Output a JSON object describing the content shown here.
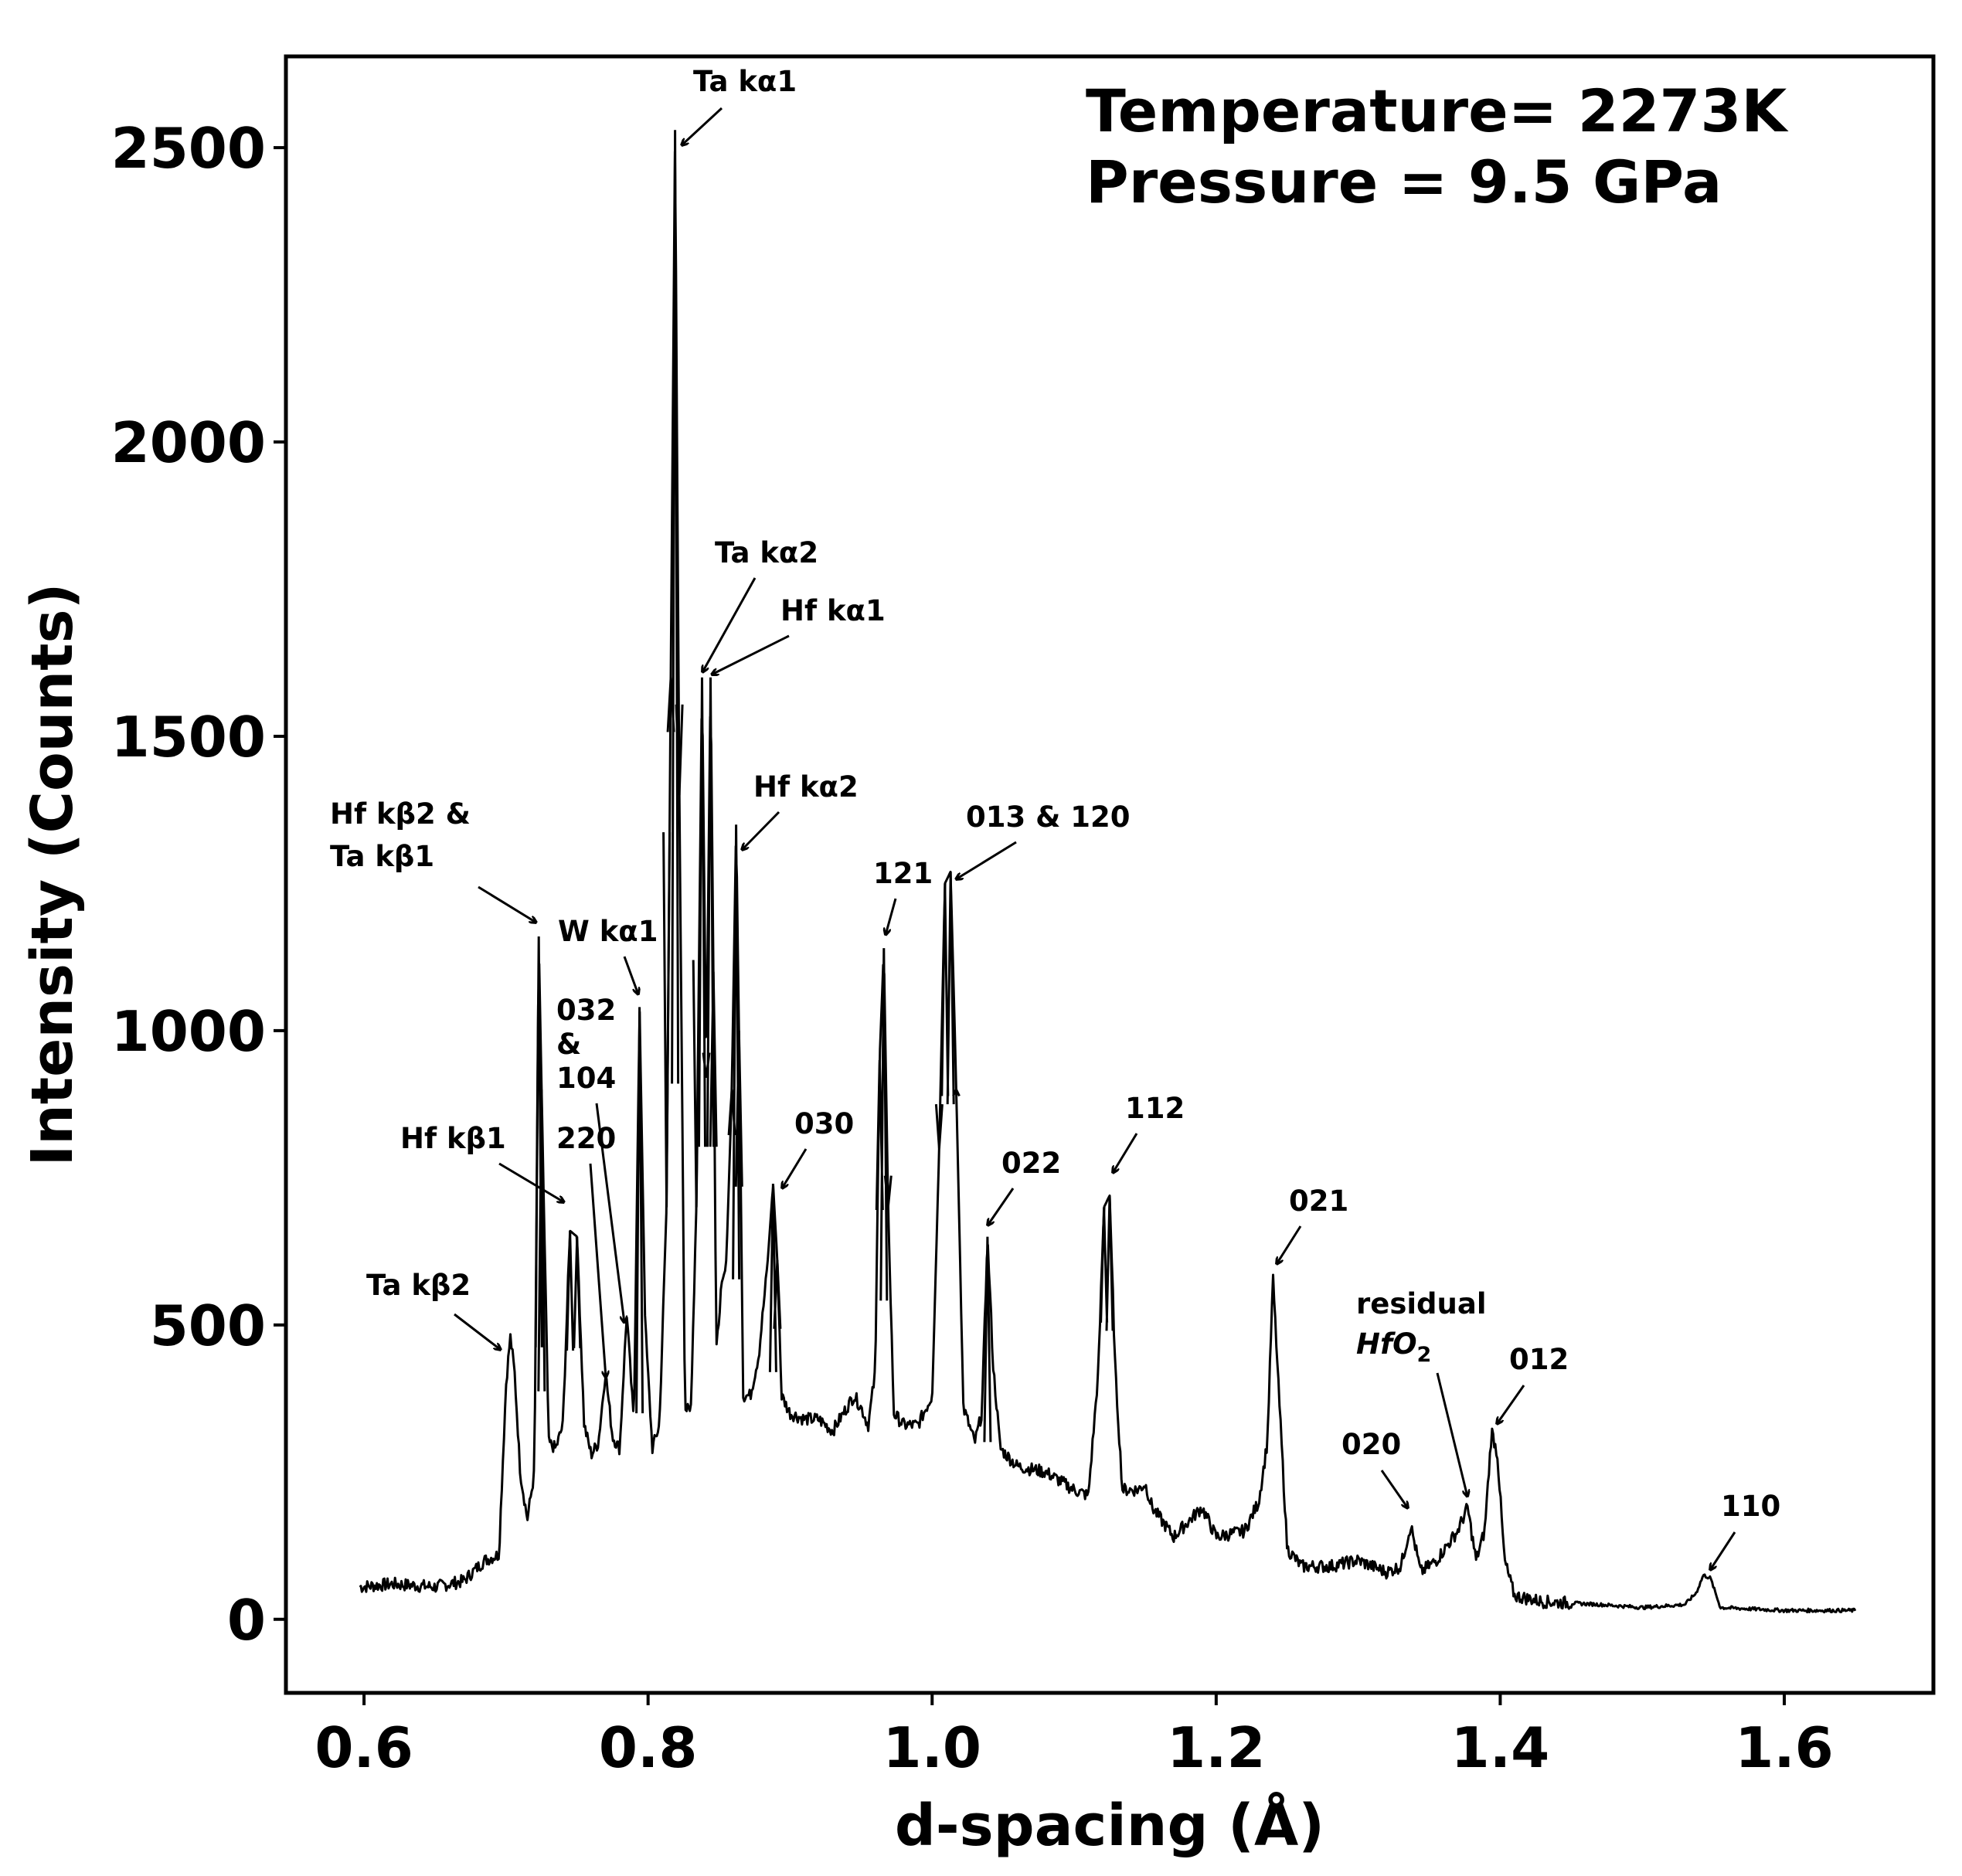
{
  "chart_data": {
    "type": "line",
    "xlabel": "d-spacing (Å)",
    "ylabel": "Intensity (Counts)",
    "xlim": [
      0.545,
      1.705
    ],
    "ylim": [
      -125,
      2655
    ],
    "x_ticks": [
      0.6,
      0.8,
      1.0,
      1.2,
      1.4,
      1.6
    ],
    "x_tick_labels": [
      "0.6",
      "0.8",
      "1.0",
      "1.2",
      "1.4",
      "1.6"
    ],
    "y_ticks": [
      0,
      500,
      1000,
      1500,
      2000,
      2500
    ],
    "y_tick_labels": [
      "0",
      "500",
      "1000",
      "1500",
      "2000",
      "2500"
    ],
    "grid": false,
    "conditions": [
      "Temperature= 2273K",
      "Pressure = 9.5 GPa"
    ],
    "series": [
      {
        "color": "#000000",
        "x": [
          0.597,
          0.62,
          0.65,
          0.67,
          0.685,
          0.695,
          0.7,
          0.703,
          0.706,
          0.71,
          0.715,
          0.72,
          0.723,
          0.725,
          0.73,
          0.735,
          0.74,
          0.745,
          0.75,
          0.755,
          0.76,
          0.765,
          0.77,
          0.775,
          0.78,
          0.785,
          0.79,
          0.794,
          0.798,
          0.803,
          0.808,
          0.813,
          0.816,
          0.819,
          0.822,
          0.826,
          0.83,
          0.834,
          0.838,
          0.841,
          0.844,
          0.846,
          0.848,
          0.851,
          0.855,
          0.859,
          0.862,
          0.864,
          0.867,
          0.872,
          0.878,
          0.884,
          0.888,
          0.891,
          0.894,
          0.9,
          0.91,
          0.92,
          0.93,
          0.94,
          0.945,
          0.95,
          0.955,
          0.96,
          0.963,
          0.966,
          0.969,
          0.973,
          0.98,
          0.99,
          1.0,
          1.005,
          1.009,
          1.013,
          1.017,
          1.022,
          1.03,
          1.035,
          1.039,
          1.043,
          1.048,
          1.06,
          1.08,
          1.1,
          1.11,
          1.117,
          1.121,
          1.125,
          1.129,
          1.134,
          1.145,
          1.15,
          1.155,
          1.17,
          1.19,
          1.2,
          1.22,
          1.23,
          1.236,
          1.24,
          1.244,
          1.25,
          1.26,
          1.28,
          1.3,
          1.32,
          1.33,
          1.337,
          1.344,
          1.355,
          1.37,
          1.377,
          1.383,
          1.389,
          1.394,
          1.398,
          1.403,
          1.41,
          1.43,
          1.47,
          1.5,
          1.53,
          1.538,
          1.543,
          1.548,
          1.555,
          1.6,
          1.65
        ],
        "values": [
          55,
          60,
          55,
          65,
          100,
          110,
          400,
          480,
          420,
          250,
          170,
          250,
          1160,
          900,
          300,
          290,
          330,
          660,
          650,
          330,
          280,
          300,
          420,
          310,
          290,
          520,
          330,
          1040,
          500,
          290,
          330,
          700,
          1600,
          2530,
          1400,
          360,
          350,
          700,
          1600,
          920,
          1600,
          1100,
          450,
          550,
          600,
          900,
          1350,
          1000,
          380,
          380,
          450,
          600,
          740,
          610,
          380,
          350,
          340,
          340,
          320,
          360,
          380,
          360,
          330,
          420,
          950,
          1140,
          700,
          350,
          330,
          330,
          380,
          800,
          1250,
          1270,
          900,
          360,
          300,
          350,
          650,
          430,
          290,
          260,
          250,
          220,
          210,
          420,
          700,
          720,
          420,
          220,
          220,
          230,
          190,
          140,
          190,
          140,
          150,
          200,
          300,
          580,
          390,
          120,
          90,
          90,
          100,
          80,
          90,
          160,
          80,
          100,
          150,
          190,
          100,
          150,
          320,
          280,
          100,
          40,
          30,
          25,
          20,
          25,
          45,
          75,
          70,
          20,
          15,
          15
        ]
      }
    ],
    "annotations": [
      {
        "text": "Ta kα1",
        "x": 0.82,
        "y": 2530
      },
      {
        "text": "Ta kα2",
        "x": 0.839,
        "y": 1600
      },
      {
        "text": "Hf kα1",
        "x": 0.846,
        "y": 1600
      },
      {
        "text": "Hf kα2",
        "x": 0.865,
        "y": 1300
      },
      {
        "text": "Hf kβ2 &",
        "x": 0.723,
        "y": 1175
      },
      {
        "text": "Ta kβ1",
        "x": 0.723,
        "y": 1175
      },
      {
        "text": "W kα1",
        "x": 0.794,
        "y": 1060
      },
      {
        "text": "032",
        "x": 0.786,
        "y": 510
      },
      {
        "text": "&",
        "x": 0.786,
        "y": 510
      },
      {
        "text": "104",
        "x": 0.786,
        "y": 510
      },
      {
        "text": "220",
        "x": 0.77,
        "y": 410
      },
      {
        "text": "Hf kβ1",
        "x": 0.744,
        "y": 705
      },
      {
        "text": "Ta kβ2",
        "x": 0.703,
        "y": 460
      },
      {
        "text": "030",
        "x": 0.891,
        "y": 730
      },
      {
        "text": "121",
        "x": 0.966,
        "y": 1150
      },
      {
        "text": "013 & 120",
        "x": 1.017,
        "y": 1260
      },
      {
        "text": "022",
        "x": 1.04,
        "y": 660
      },
      {
        "text": "112",
        "x": 1.127,
        "y": 750
      },
      {
        "text": "021",
        "x": 1.24,
        "y": 590
      },
      {
        "text": "residual",
        "x": 1.378,
        "y": 200
      },
      {
        "text": "HfO",
        "x": 1.378,
        "y": 200
      },
      {
        "text": "2",
        "x": 1.378,
        "y": 200
      },
      {
        "text": "020",
        "x": 1.337,
        "y": 180
      },
      {
        "text": "012",
        "x": 1.398,
        "y": 335
      },
      {
        "text": "110",
        "x": 1.544,
        "y": 85
      }
    ]
  }
}
